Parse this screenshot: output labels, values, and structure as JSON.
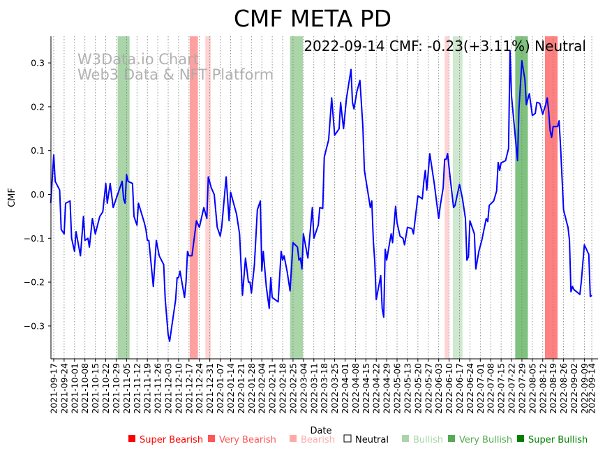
{
  "chart_data": {
    "type": "line",
    "title": "CMF META PD",
    "annotation": "2022-09-14 CMF: -0.23(+3.11%) Neutral",
    "watermark": [
      "W3Data.io Chart",
      "Web3 Data & NFT Platform"
    ],
    "xlabel": "Date",
    "ylabel": "CMF",
    "x_unit": "days since 2021-09-17",
    "xlim": [
      -2,
      362
    ],
    "ylim": [
      -0.375,
      0.36
    ],
    "grid": "vertical dotted at x ticks",
    "yticks": [
      -0.3,
      -0.2,
      -0.1,
      0.0,
      0.1,
      0.2,
      0.3
    ],
    "ytick_labels": [
      "−0.3",
      "−0.2",
      "−0.1",
      "0.0",
      "0.1",
      "0.2",
      "0.3"
    ],
    "xtick_days": [
      0,
      7,
      14,
      21,
      28,
      35,
      42,
      49,
      56,
      63,
      70,
      77,
      84,
      91,
      98,
      105,
      112,
      119,
      126,
      133,
      140,
      147,
      154,
      161,
      168,
      175,
      182,
      189,
      196,
      203,
      210,
      217,
      224,
      231,
      238,
      245,
      252,
      259,
      266,
      273,
      280,
      287,
      294,
      301,
      308,
      315,
      322,
      329,
      336,
      343,
      350,
      357,
      362
    ],
    "xtick_labels": [
      "2021-09-17",
      "2021-09-24",
      "2021-10-01",
      "2021-10-08",
      "2021-10-15",
      "2021-10-22",
      "2021-10-29",
      "2021-11-05",
      "2021-11-12",
      "2021-11-19",
      "2021-11-26",
      "2021-12-03",
      "2021-12-10",
      "2021-12-17",
      "2021-12-24",
      "2021-12-31",
      "2022-01-07",
      "2022-01-14",
      "2022-01-21",
      "2022-01-28",
      "2022-02-04",
      "2022-02-11",
      "2022-02-18",
      "2022-02-25",
      "2022-03-04",
      "2022-03-11",
      "2022-03-18",
      "2022-03-25",
      "2022-04-01",
      "2022-04-08",
      "2022-04-15",
      "2022-04-22",
      "2022-04-29",
      "2022-05-06",
      "2022-05-13",
      "2022-05-20",
      "2022-05-27",
      "2022-06-03",
      "2022-06-10",
      "2022-06-17",
      "2022-06-24",
      "2022-07-01",
      "2022-07-08",
      "2022-07-15",
      "2022-07-22",
      "2022-07-29",
      "2022-08-05",
      "2022-08-12",
      "2022-08-19",
      "2022-08-26",
      "2022-09-02",
      "2022-09-09",
      "2022-09-14"
    ],
    "bands": [
      {
        "start": 43,
        "end": 51,
        "type": "Bullish",
        "color": "#a9d5a9"
      },
      {
        "start": 91.5,
        "end": 97,
        "type": "Very Bearish",
        "color": "#ffa0a0"
      },
      {
        "start": 102,
        "end": 105.6,
        "type": "Bearish",
        "color": "#ffd3d3"
      },
      {
        "start": 159,
        "end": 167.6,
        "type": "Bullish",
        "color": "#a9d5a9"
      },
      {
        "start": 263,
        "end": 266,
        "type": "Bearish",
        "color": "#ffd3d3"
      },
      {
        "start": 268.5,
        "end": 275,
        "type": "Bullish",
        "color": "#cfe8cf"
      },
      {
        "start": 310.5,
        "end": 319,
        "type": "Very Bullish",
        "color": "#7fc27f"
      },
      {
        "start": 330.5,
        "end": 339,
        "type": "Very Bearish",
        "color": "#ff8080"
      }
    ],
    "series": [
      {
        "name": "CMF",
        "color": "#0000ff",
        "points": [
          [
            -2,
            -0.02
          ],
          [
            0,
            0.09
          ],
          [
            1,
            0.03
          ],
          [
            4,
            0.01
          ],
          [
            5,
            -0.08
          ],
          [
            7,
            -0.09
          ],
          [
            8,
            -0.02
          ],
          [
            11,
            -0.015
          ],
          [
            12,
            -0.1
          ],
          [
            14,
            -0.13
          ],
          [
            15,
            -0.085
          ],
          [
            18,
            -0.14
          ],
          [
            20,
            -0.05
          ],
          [
            21,
            -0.105
          ],
          [
            23,
            -0.1
          ],
          [
            24,
            -0.12
          ],
          [
            26,
            -0.055
          ],
          [
            28,
            -0.09
          ],
          [
            31,
            -0.05
          ],
          [
            33,
            -0.04
          ],
          [
            35,
            0.025
          ],
          [
            36,
            -0.02
          ],
          [
            38,
            0.025
          ],
          [
            40,
            -0.03
          ],
          [
            43,
            0.0
          ],
          [
            46,
            0.03
          ],
          [
            47,
            -0.01
          ],
          [
            48,
            -0.02
          ],
          [
            49,
            0.045
          ],
          [
            50,
            0.03
          ],
          [
            53,
            0.025
          ],
          [
            54,
            -0.05
          ],
          [
            56,
            -0.07
          ],
          [
            57,
            -0.02
          ],
          [
            61,
            -0.065
          ],
          [
            62,
            -0.08
          ],
          [
            63,
            -0.105
          ],
          [
            64,
            -0.105
          ],
          [
            67,
            -0.21
          ],
          [
            69,
            -0.105
          ],
          [
            71,
            -0.14
          ],
          [
            74,
            -0.16
          ],
          [
            75,
            -0.24
          ],
          [
            77,
            -0.32
          ],
          [
            78,
            -0.335
          ],
          [
            82,
            -0.24
          ],
          [
            83,
            -0.19
          ],
          [
            84,
            -0.19
          ],
          [
            85,
            -0.175
          ],
          [
            88,
            -0.235
          ],
          [
            89,
            -0.2
          ],
          [
            90,
            -0.13
          ],
          [
            91,
            -0.14
          ],
          [
            93,
            -0.14
          ],
          [
            96,
            -0.06
          ],
          [
            98,
            -0.075
          ],
          [
            101,
            -0.03
          ],
          [
            103,
            -0.055
          ],
          [
            104,
            0.04
          ],
          [
            106,
            0.015
          ],
          [
            108,
            0.0
          ],
          [
            110,
            -0.075
          ],
          [
            112,
            -0.095
          ],
          [
            113,
            -0.075
          ],
          [
            116,
            0.04
          ],
          [
            118,
            -0.06
          ],
          [
            119,
            0.005
          ],
          [
            123,
            -0.045
          ],
          [
            125,
            -0.09
          ],
          [
            127,
            -0.23
          ],
          [
            129,
            -0.145
          ],
          [
            131,
            -0.2
          ],
          [
            132,
            -0.2
          ],
          [
            133,
            -0.225
          ],
          [
            135,
            -0.16
          ],
          [
            137,
            -0.035
          ],
          [
            139,
            -0.015
          ],
          [
            140,
            -0.175
          ],
          [
            141,
            -0.13
          ],
          [
            143,
            -0.21
          ],
          [
            145,
            -0.26
          ],
          [
            146,
            -0.19
          ],
          [
            147,
            -0.235
          ],
          [
            151,
            -0.245
          ],
          [
            153,
            -0.13
          ],
          [
            154,
            -0.15
          ],
          [
            155,
            -0.14
          ],
          [
            157,
            -0.175
          ],
          [
            159,
            -0.22
          ],
          [
            161,
            -0.11
          ],
          [
            164,
            -0.12
          ],
          [
            165,
            -0.15
          ],
          [
            166,
            -0.145
          ],
          [
            167,
            -0.17
          ],
          [
            168,
            -0.09
          ],
          [
            171,
            -0.145
          ],
          [
            174,
            -0.03
          ],
          [
            175,
            -0.1
          ],
          [
            177,
            -0.08
          ],
          [
            178,
            -0.07
          ],
          [
            179,
            -0.03
          ],
          [
            181,
            -0.032
          ],
          [
            182,
            0.085
          ],
          [
            185,
            0.125
          ],
          [
            187,
            0.22
          ],
          [
            189,
            0.135
          ],
          [
            192,
            0.15
          ],
          [
            193,
            0.21
          ],
          [
            195,
            0.15
          ],
          [
            197,
            0.22
          ],
          [
            200,
            0.285
          ],
          [
            201,
            0.21
          ],
          [
            202,
            0.195
          ],
          [
            204,
            0.235
          ],
          [
            206,
            0.26
          ],
          [
            208,
            0.155
          ],
          [
            209,
            0.055
          ],
          [
            213,
            -0.03
          ],
          [
            214,
            -0.015
          ],
          [
            215,
            -0.105
          ],
          [
            216,
            -0.155
          ],
          [
            217,
            -0.24
          ],
          [
            220,
            -0.185
          ],
          [
            221,
            -0.26
          ],
          [
            222,
            -0.28
          ],
          [
            223,
            -0.125
          ],
          [
            224,
            -0.15
          ],
          [
            227,
            -0.09
          ],
          [
            228,
            -0.11
          ],
          [
            230,
            -0.027
          ],
          [
            231,
            -0.065
          ],
          [
            233,
            -0.095
          ],
          [
            235,
            -0.1
          ],
          [
            236,
            -0.115
          ],
          [
            238,
            -0.075
          ],
          [
            241,
            -0.078
          ],
          [
            242,
            -0.09
          ],
          [
            245,
            -0.003
          ],
          [
            248,
            -0.01
          ],
          [
            249,
            0.03
          ],
          [
            250,
            0.055
          ],
          [
            251,
            0.01
          ],
          [
            253,
            0.093
          ],
          [
            256,
            0.025
          ],
          [
            259,
            -0.055
          ],
          [
            260,
            -0.027
          ],
          [
            262,
            0.015
          ],
          [
            263,
            0.08
          ],
          [
            264,
            0.08
          ],
          [
            265,
            0.093
          ],
          [
            267,
            0.03
          ],
          [
            269,
            -0.03
          ],
          [
            270,
            -0.025
          ],
          [
            273,
            0.023
          ],
          [
            275,
            -0.01
          ],
          [
            277,
            -0.055
          ],
          [
            278,
            -0.15
          ],
          [
            279,
            -0.142
          ],
          [
            280,
            -0.06
          ],
          [
            283,
            -0.09
          ],
          [
            284,
            -0.17
          ],
          [
            286,
            -0.13
          ],
          [
            288,
            -0.105
          ],
          [
            291,
            -0.055
          ],
          [
            292,
            -0.062
          ],
          [
            293,
            -0.025
          ],
          [
            296,
            -0.015
          ],
          [
            298,
            0.008
          ],
          [
            299,
            0.073
          ],
          [
            300,
            0.055
          ],
          [
            301,
            0.072
          ],
          [
            304,
            0.077
          ],
          [
            306,
            0.105
          ],
          [
            307,
            0.328
          ],
          [
            308,
            0.225
          ],
          [
            312,
            0.077
          ],
          [
            313,
            0.195
          ],
          [
            315,
            0.305
          ],
          [
            317,
            0.262
          ],
          [
            318,
            0.205
          ],
          [
            320,
            0.23
          ],
          [
            322,
            0.18
          ],
          [
            324,
            0.185
          ],
          [
            325,
            0.21
          ],
          [
            327,
            0.208
          ],
          [
            329,
            0.183
          ],
          [
            331,
            0.205
          ],
          [
            332,
            0.22
          ],
          [
            333,
            0.19
          ],
          [
            334,
            0.145
          ],
          [
            335,
            0.13
          ],
          [
            336,
            0.155
          ],
          [
            339,
            0.155
          ],
          [
            340,
            0.168
          ],
          [
            341,
            0.11
          ],
          [
            343,
            -0.035
          ],
          [
            345,
            -0.062
          ],
          [
            346,
            -0.075
          ],
          [
            347,
            -0.105
          ],
          [
            348,
            -0.222
          ],
          [
            349,
            -0.21
          ],
          [
            350,
            -0.217
          ],
          [
            354,
            -0.228
          ],
          [
            355,
            -0.198
          ],
          [
            357,
            -0.115
          ],
          [
            360,
            -0.137
          ],
          [
            361,
            -0.233
          ],
          [
            362,
            -0.23
          ]
        ]
      }
    ],
    "legend": {
      "placement": "bottom-center",
      "entries": [
        {
          "label": "Super Bearish",
          "color": "#ff0000",
          "filled": true
        },
        {
          "label": "Very Bearish",
          "color": "#ff5555",
          "filled": true
        },
        {
          "label": "Bearish",
          "color": "#ffaaaa",
          "filled": true
        },
        {
          "label": "Neutral",
          "color": "#000000",
          "filled": false
        },
        {
          "label": "Bullish",
          "color": "#aad5aa",
          "filled": true
        },
        {
          "label": "Very Bullish",
          "color": "#55aa55",
          "filled": true
        },
        {
          "label": "Super Bullish",
          "color": "#008000",
          "filled": true
        }
      ]
    }
  }
}
